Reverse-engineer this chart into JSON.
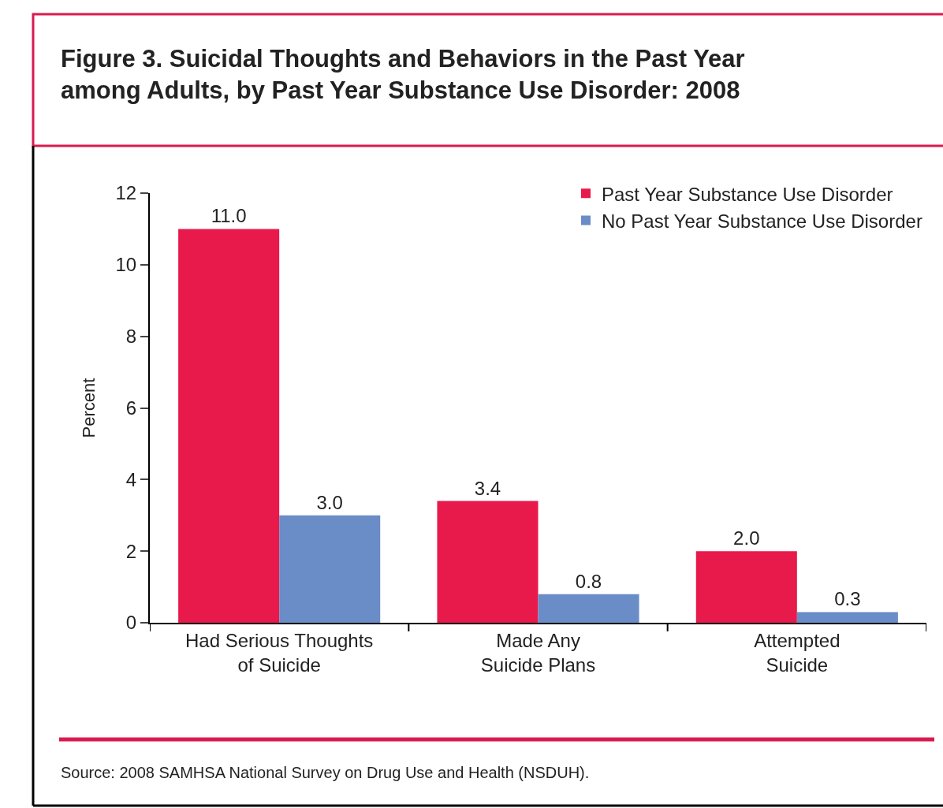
{
  "chart_data": {
    "type": "bar",
    "title": "Figure 3. Suicidal Thoughts and Behaviors in the Past Year\namong Adults, by Past Year Substance Use Disorder: 2008",
    "ylabel": "Percent",
    "categories": [
      "Had Serious Thoughts\nof Suicide",
      "Made Any\nSuicide Plans",
      "Attempted\nSuicide"
    ],
    "series": [
      {
        "name": "Past Year Substance Use Disorder",
        "color": "#e8194b",
        "values": [
          11.0,
          3.4,
          2.0
        ],
        "value_labels": [
          "11.0",
          "3.4",
          "2.0"
        ]
      },
      {
        "name": "No Past Year Substance Use Disorder",
        "color": "#6a8cc7",
        "values": [
          3.0,
          0.8,
          0.3
        ],
        "value_labels": [
          "3.0",
          "0.8",
          "0.3"
        ]
      }
    ],
    "ylim": [
      0,
      12
    ],
    "yticks": [
      0,
      2,
      4,
      6,
      8,
      10,
      12
    ],
    "legend": "top right",
    "annotations": [
      "Source: 2008 SAMHSA National Survey on Drug Use and Health (NSDUH)."
    ]
  }
}
